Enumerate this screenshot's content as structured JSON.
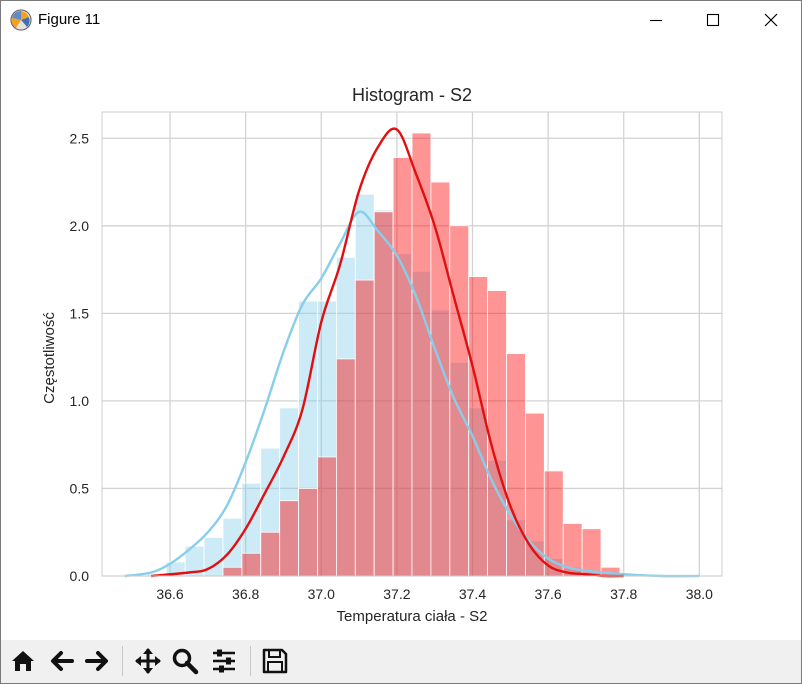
{
  "window": {
    "title": "Figure 11",
    "controls": [
      "minimize",
      "maximize",
      "close"
    ]
  },
  "toolbar": {
    "buttons": [
      {
        "name": "home",
        "icon": "home-icon"
      },
      {
        "name": "back",
        "icon": "arrow-left-icon"
      },
      {
        "name": "forward",
        "icon": "arrow-right-icon"
      },
      {
        "name": "pan",
        "icon": "move-icon"
      },
      {
        "name": "zoom",
        "icon": "zoom-icon"
      },
      {
        "name": "configure-subplots",
        "icon": "sliders-icon"
      },
      {
        "name": "save",
        "icon": "save-icon"
      }
    ]
  },
  "chart_data": {
    "type": "bar",
    "title": "Histogram - S2",
    "xlabel": "Temperatura ciała - S2",
    "ylabel": "Częstotliwość",
    "xlim": [
      36.42,
      38.06
    ],
    "ylim": [
      0,
      2.65
    ],
    "xticks": [
      "36.6",
      "36.8",
      "37.0",
      "37.2",
      "37.4",
      "37.6",
      "37.8",
      "38.0"
    ],
    "yticks": [
      "0.0",
      "0.5",
      "1.0",
      "1.5",
      "2.0",
      "2.5"
    ],
    "grid": true,
    "bin_width": 0.05,
    "colors": {
      "s1": "#87ceeb",
      "s2": "#ff0000",
      "s1_kde": "#87ceeb",
      "s2_kde": "#e01010"
    },
    "series": [
      {
        "bins": [
          [
            36.49,
            0.0
          ],
          [
            36.54,
            0.01
          ],
          [
            36.59,
            0.08
          ],
          [
            36.64,
            0.17
          ],
          [
            36.69,
            0.22
          ],
          [
            36.74,
            0.33
          ],
          [
            36.79,
            0.53
          ],
          [
            36.84,
            0.73
          ],
          [
            36.89,
            0.96
          ],
          [
            36.94,
            1.57
          ],
          [
            36.99,
            1.57
          ],
          [
            37.04,
            1.82
          ],
          [
            37.09,
            2.18
          ],
          [
            37.14,
            2.09
          ],
          [
            37.19,
            1.84
          ],
          [
            37.24,
            1.74
          ],
          [
            37.29,
            1.52
          ],
          [
            37.34,
            1.22
          ],
          [
            37.39,
            0.96
          ],
          [
            37.44,
            0.66
          ],
          [
            37.49,
            0.32
          ],
          [
            37.54,
            0.2
          ],
          [
            37.59,
            0.1
          ],
          [
            37.64,
            0.05
          ],
          [
            37.69,
            0.02
          ],
          [
            37.74,
            0.01
          ],
          [
            37.79,
            0.0
          ]
        ],
        "kde": {
          "x": [
            36.48,
            36.55,
            36.6,
            36.65,
            36.7,
            36.75,
            36.8,
            36.85,
            36.9,
            36.95,
            37.0,
            37.05,
            37.1,
            37.15,
            37.2,
            37.25,
            37.3,
            37.35,
            37.4,
            37.45,
            37.5,
            37.55,
            37.6,
            37.65,
            37.7,
            37.8,
            37.9,
            38.0
          ],
          "y": [
            0.0,
            0.02,
            0.07,
            0.15,
            0.25,
            0.4,
            0.65,
            0.95,
            1.28,
            1.55,
            1.7,
            1.9,
            2.08,
            1.97,
            1.83,
            1.6,
            1.3,
            1.02,
            0.8,
            0.55,
            0.35,
            0.2,
            0.1,
            0.05,
            0.03,
            0.01,
            0.0,
            0.0
          ]
        }
      },
      {
        "bins": [
          [
            36.69,
            0.0
          ],
          [
            36.74,
            0.05
          ],
          [
            36.79,
            0.13
          ],
          [
            36.84,
            0.25
          ],
          [
            36.89,
            0.43
          ],
          [
            36.94,
            0.5
          ],
          [
            36.99,
            0.68
          ],
          [
            37.04,
            1.24
          ],
          [
            37.09,
            1.69
          ],
          [
            37.14,
            2.08
          ],
          [
            37.19,
            2.39
          ],
          [
            37.24,
            2.53
          ],
          [
            37.29,
            2.25
          ],
          [
            37.34,
            2.0
          ],
          [
            37.39,
            1.71
          ],
          [
            37.44,
            1.63
          ],
          [
            37.49,
            1.27
          ],
          [
            37.54,
            0.93
          ],
          [
            37.59,
            0.6
          ],
          [
            37.64,
            0.3
          ],
          [
            37.69,
            0.27
          ],
          [
            37.74,
            0.05
          ]
        ],
        "kde": {
          "x": [
            36.55,
            36.65,
            36.7,
            36.75,
            36.8,
            36.85,
            36.9,
            36.95,
            37.0,
            37.05,
            37.1,
            37.15,
            37.2,
            37.25,
            37.3,
            37.35,
            37.4,
            37.45,
            37.5,
            37.55,
            37.6,
            37.65,
            37.7,
            37.75,
            37.8
          ],
          "y": [
            0.0,
            0.02,
            0.04,
            0.12,
            0.27,
            0.47,
            0.68,
            0.95,
            1.45,
            1.78,
            2.2,
            2.45,
            2.55,
            2.3,
            2.0,
            1.6,
            1.2,
            0.75,
            0.4,
            0.18,
            0.06,
            0.02,
            0.01,
            0.0,
            0.0
          ]
        }
      }
    ]
  }
}
